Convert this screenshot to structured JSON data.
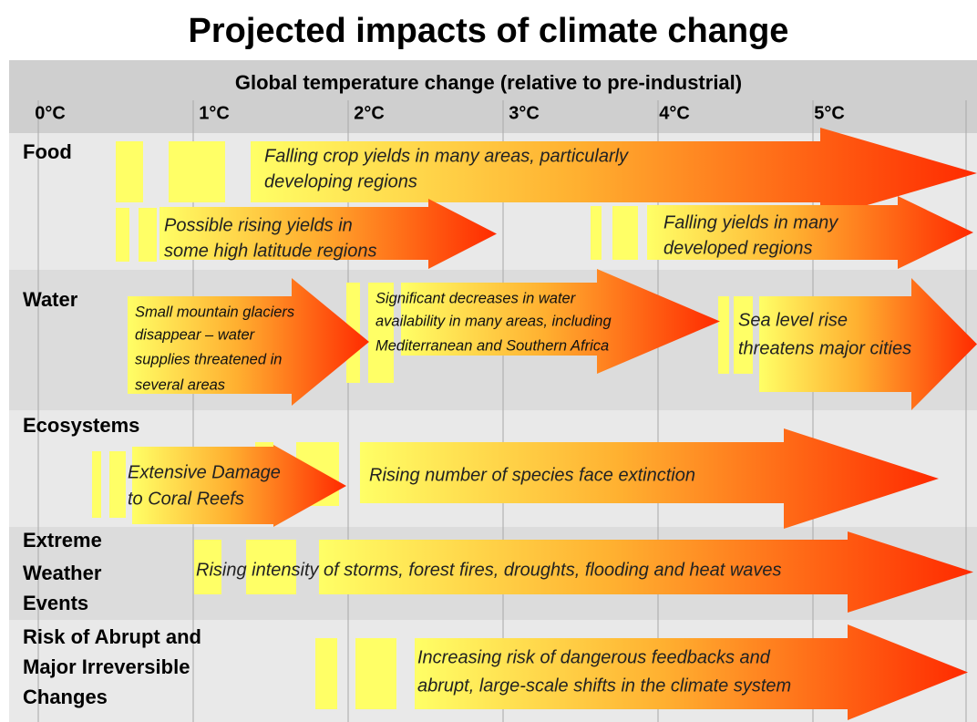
{
  "title": "Projected impacts of climate change",
  "header": {
    "label": "Global temperature change (relative to pre-industrial)",
    "ticks": [
      "0°C",
      "1°C",
      "2°C",
      "3°C",
      "4°C",
      "5°C"
    ]
  },
  "rows": [
    {
      "label": [
        "Food"
      ],
      "impacts": [
        {
          "lines": [
            "Falling crop yields in many areas, particularly",
            "developing regions"
          ]
        },
        {
          "lines": [
            "Possible rising yields in",
            "some high latitude regions"
          ]
        },
        {
          "lines": [
            "Falling yields in many",
            "developed regions"
          ]
        }
      ]
    },
    {
      "label": [
        "Water"
      ],
      "impacts": [
        {
          "lines": [
            "Small mountain glaciers",
            "disappear  – water",
            "supplies threatened in",
            "several areas"
          ]
        },
        {
          "lines": [
            "Significant decreases in water",
            "availability in many areas, including",
            "Mediterranean and Southern Africa"
          ]
        },
        {
          "lines": [
            "Sea level rise",
            "threatens major cities"
          ]
        }
      ]
    },
    {
      "label": [
        "Ecosystems"
      ],
      "impacts": [
        {
          "lines": [
            "Extensive Damage",
            "to Coral Reefs"
          ]
        },
        {
          "lines": [
            "Rising number of species face extinction"
          ]
        }
      ]
    },
    {
      "label": [
        "Extreme",
        "Weather",
        "Events"
      ],
      "impacts": [
        {
          "lines": [
            "Rising intensity of storms, forest fires, droughts, flooding and heat waves"
          ]
        }
      ]
    },
    {
      "label": [
        "Risk of Abrupt and",
        "Major Irreversible",
        "Changes"
      ],
      "impacts": [
        {
          "lines": [
            "Increasing risk of dangerous feedbacks and",
            "abrupt, large-scale shifts in the climate system"
          ]
        }
      ]
    }
  ]
}
